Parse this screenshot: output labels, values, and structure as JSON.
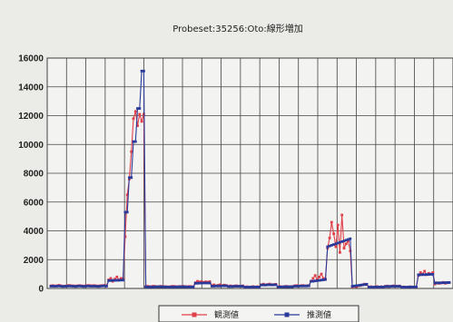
{
  "chart_data": {
    "type": "line",
    "title": "Probeset:35256:Oto:線形増加",
    "xlabel": "",
    "ylabel": "",
    "ylim": [
      0,
      16000
    ],
    "yticks": [
      0,
      2000,
      4000,
      6000,
      8000,
      10000,
      12000,
      14000,
      16000
    ],
    "grid": true,
    "legend_position": "bottom",
    "series": [
      {
        "name": "観測値",
        "color": "#e0404a",
        "values": [
          180,
          200,
          170,
          190,
          220,
          180,
          160,
          170,
          200,
          210,
          190,
          180,
          170,
          190,
          200,
          180,
          170,
          190,
          210,
          200,
          190,
          200,
          180,
          170,
          190,
          200,
          210,
          190,
          600,
          700,
          500,
          650,
          800,
          600,
          700,
          650,
          3600,
          6500,
          7600,
          9500,
          11800,
          12300,
          11300,
          12100,
          11600,
          12100,
          130,
          150,
          120,
          140,
          160,
          130,
          120,
          150,
          140,
          130,
          120,
          110,
          130,
          150,
          140,
          120,
          130,
          140,
          150,
          130,
          120,
          140,
          130,
          120,
          400,
          500,
          450,
          480,
          420,
          460,
          440,
          470,
          200,
          250,
          180,
          220,
          260,
          200,
          230,
          210,
          150,
          180,
          160,
          170,
          190,
          150,
          160,
          180,
          100,
          120,
          90,
          110,
          130,
          100,
          120,
          110,
          260,
          300,
          240,
          280,
          310,
          250,
          270,
          290,
          120,
          140,
          110,
          130,
          150,
          120,
          130,
          140,
          180,
          200,
          170,
          190,
          210,
          180,
          190,
          200,
          500,
          700,
          900,
          600,
          800,
          1000,
          700,
          650,
          2800,
          3500,
          4600,
          3800,
          2900,
          4400,
          2500,
          5100,
          2800,
          3100,
          3300,
          2600,
          100,
          150,
          120,
          180,
          200,
          250,
          300,
          260,
          100,
          120,
          90,
          110,
          130,
          100,
          120,
          110,
          150,
          170,
          140,
          160,
          180,
          150,
          160,
          170,
          100,
          110,
          90,
          100,
          120,
          100,
          110,
          100,
          900,
          1100,
          1000,
          1200,
          950,
          1050,
          1000,
          1100,
          300,
          400,
          350,
          380,
          420,
          360,
          390,
          410
        ]
      },
      {
        "name": "推測値",
        "color": "#2a3a9a",
        "values": [
          150,
          160,
          150,
          160,
          170,
          150,
          140,
          150,
          160,
          170,
          160,
          150,
          140,
          160,
          170,
          150,
          140,
          160,
          170,
          160,
          150,
          160,
          150,
          140,
          160,
          170,
          180,
          160,
          550,
          550,
          560,
          560,
          570,
          570,
          580,
          580,
          5300,
          5300,
          7700,
          7700,
          10200,
          10200,
          12500,
          12500,
          15100,
          15100,
          100,
          100,
          110,
          110,
          110,
          120,
          120,
          120,
          120,
          110,
          110,
          100,
          100,
          110,
          110,
          110,
          120,
          120,
          120,
          120,
          110,
          110,
          100,
          100,
          360,
          360,
          370,
          370,
          380,
          380,
          380,
          380,
          160,
          160,
          170,
          170,
          170,
          180,
          180,
          180,
          140,
          140,
          140,
          150,
          150,
          150,
          150,
          150,
          90,
          90,
          90,
          100,
          100,
          100,
          100,
          100,
          240,
          240,
          240,
          250,
          250,
          250,
          250,
          260,
          110,
          110,
          110,
          120,
          120,
          120,
          120,
          120,
          160,
          160,
          160,
          170,
          170,
          170,
          170,
          180,
          500,
          500,
          520,
          540,
          560,
          580,
          600,
          620,
          2900,
          2950,
          3000,
          3050,
          3100,
          3150,
          3200,
          3250,
          3300,
          3350,
          3400,
          3450,
          150,
          170,
          190,
          210,
          230,
          250,
          270,
          290,
          90,
          90,
          90,
          100,
          100,
          100,
          100,
          100,
          140,
          140,
          140,
          150,
          150,
          150,
          150,
          150,
          90,
          90,
          90,
          90,
          100,
          100,
          100,
          100,
          950,
          950,
          960,
          960,
          970,
          970,
          980,
          980,
          380,
          380,
          390,
          390,
          400,
          400,
          410,
          410
        ]
      }
    ]
  }
}
